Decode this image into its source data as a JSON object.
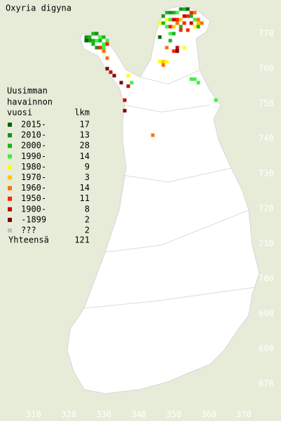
{
  "title": "Oxyria digyna",
  "legend": {
    "header": [
      "Uusimman",
      "havainnon",
      "vuosi"
    ],
    "count_header": "lkm",
    "rows": [
      {
        "label": "2015-",
        "count": 17,
        "color": "#006400"
      },
      {
        "label": "2010-",
        "count": 13,
        "color": "#1c8c1c"
      },
      {
        "label": "2000-",
        "count": 28,
        "color": "#18b418"
      },
      {
        "label": "1990-",
        "count": 14,
        "color": "#40f040"
      },
      {
        "label": "1980-",
        "count": 9,
        "color": "#ffff00"
      },
      {
        "label": "1970-",
        "count": 3,
        "color": "#ffc800"
      },
      {
        "label": "1960-",
        "count": 14,
        "color": "#ff7000"
      },
      {
        "label": "1950-",
        "count": 11,
        "color": "#ff2000"
      },
      {
        "label": "1900-",
        "count": 8,
        "color": "#c80000"
      },
      {
        "label": "-1899",
        "count": 2,
        "color": "#800000"
      },
      {
        "label": "???",
        "count": 2,
        "color": "#c0c0c0"
      }
    ]
  },
  "total": {
    "label": "Yhteensä",
    "value": 121
  },
  "xticks": [
    310,
    320,
    330,
    340,
    350,
    360,
    370
  ],
  "yticks": [
    670,
    680,
    690,
    700,
    710,
    720,
    730,
    740,
    750,
    760,
    770
  ],
  "observations": [
    [
      352,
      777,
      1
    ],
    [
      353,
      777,
      2
    ],
    [
      354,
      777,
      0
    ],
    [
      355,
      776,
      7
    ],
    [
      356,
      776,
      6
    ],
    [
      351,
      776,
      3
    ],
    [
      350,
      776,
      2
    ],
    [
      349,
      776,
      1
    ],
    [
      348,
      776,
      2
    ],
    [
      347,
      775,
      1
    ],
    [
      348,
      774,
      4
    ],
    [
      349,
      774,
      3
    ],
    [
      350,
      774,
      8
    ],
    [
      351,
      774,
      7
    ],
    [
      352,
      774,
      5
    ],
    [
      353,
      775,
      8
    ],
    [
      354,
      775,
      7
    ],
    [
      355,
      775,
      2
    ],
    [
      356,
      774,
      3
    ],
    [
      357,
      774,
      6
    ],
    [
      358,
      773,
      6
    ],
    [
      357,
      773,
      5
    ],
    [
      355,
      773,
      8
    ],
    [
      353,
      773,
      7
    ],
    [
      352,
      772,
      2
    ],
    [
      351,
      773,
      6
    ],
    [
      350,
      772,
      5
    ],
    [
      349,
      772,
      7
    ],
    [
      348,
      772,
      3
    ],
    [
      347,
      773,
      2
    ],
    [
      346,
      773,
      4
    ],
    [
      352,
      771,
      7
    ],
    [
      354,
      771,
      7
    ],
    [
      356,
      772,
      4
    ],
    [
      357,
      772,
      2
    ],
    [
      350,
      770,
      2
    ],
    [
      349,
      770,
      3
    ],
    [
      346,
      769,
      0
    ],
    [
      349,
      768,
      2
    ],
    [
      348,
      766,
      6
    ],
    [
      351,
      766,
      8
    ],
    [
      353,
      766,
      4
    ],
    [
      351,
      765,
      9
    ],
    [
      347,
      762,
      5
    ],
    [
      348,
      762,
      4
    ],
    [
      346,
      762,
      4
    ],
    [
      347,
      761,
      6
    ],
    [
      350,
      765,
      7
    ],
    [
      325,
      769,
      1
    ],
    [
      326,
      769,
      2
    ],
    [
      327,
      770,
      2
    ],
    [
      328,
      770,
      1
    ],
    [
      329,
      769,
      3
    ],
    [
      330,
      769,
      2
    ],
    [
      325,
      768,
      0
    ],
    [
      326,
      768,
      1
    ],
    [
      327,
      768,
      2
    ],
    [
      328,
      768,
      3
    ],
    [
      329,
      768,
      2
    ],
    [
      330,
      767,
      3
    ],
    [
      331,
      767,
      7
    ],
    [
      327,
      767,
      2
    ],
    [
      328,
      766,
      1
    ],
    [
      329,
      766,
      7
    ],
    [
      330,
      766,
      3
    ],
    [
      331,
      768,
      3
    ],
    [
      330,
      765,
      6
    ],
    [
      331,
      763,
      6
    ],
    [
      331,
      760,
      9
    ],
    [
      332,
      759,
      8
    ],
    [
      333,
      758,
      9
    ],
    [
      335,
      756,
      9
    ],
    [
      337,
      758,
      4
    ],
    [
      338,
      756,
      3
    ],
    [
      337,
      755,
      8
    ],
    [
      336,
      751,
      8
    ],
    [
      336,
      748,
      9
    ],
    [
      344,
      741,
      6
    ],
    [
      355,
      757,
      3
    ],
    [
      356,
      757,
      3
    ],
    [
      357,
      756,
      3
    ],
    [
      362,
      751,
      3
    ]
  ]
}
